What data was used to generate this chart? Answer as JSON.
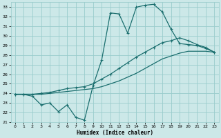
{
  "xlabel": "Humidex (Indice chaleur)",
  "bg_color": "#cce8e8",
  "grid_color": "#99cccc",
  "line_color": "#1a6e6e",
  "xlim_min": -0.5,
  "xlim_max": 23.5,
  "ylim_min": 21,
  "ylim_max": 33.5,
  "xticks": [
    0,
    1,
    2,
    3,
    4,
    5,
    6,
    7,
    8,
    9,
    10,
    11,
    12,
    13,
    14,
    15,
    16,
    17,
    18,
    19,
    20,
    21,
    22,
    23
  ],
  "yticks": [
    21,
    22,
    23,
    24,
    25,
    26,
    27,
    28,
    29,
    30,
    31,
    32,
    33
  ],
  "line1_x": [
    0,
    1,
    2,
    3,
    4,
    5,
    6,
    7,
    8,
    9,
    10,
    11,
    12,
    13,
    14,
    15,
    16,
    17,
    18,
    19,
    20,
    21,
    22,
    23
  ],
  "line1_y": [
    23.9,
    23.9,
    23.7,
    22.8,
    23.0,
    22.1,
    22.8,
    21.5,
    21.2,
    24.8,
    27.5,
    32.4,
    32.3,
    30.3,
    33.0,
    33.2,
    33.3,
    32.5,
    30.7,
    29.2,
    29.1,
    29.0,
    28.7,
    28.3
  ],
  "line2_x": [
    0,
    1,
    2,
    3,
    4,
    5,
    6,
    7,
    8,
    9,
    10,
    11,
    12,
    13,
    14,
    15,
    16,
    17,
    18,
    19,
    20,
    21,
    22,
    23
  ],
  "line2_y": [
    23.9,
    23.9,
    23.9,
    24.0,
    24.1,
    24.3,
    24.5,
    24.6,
    24.7,
    25.0,
    25.5,
    26.0,
    26.6,
    27.2,
    27.8,
    28.3,
    28.8,
    29.3,
    29.5,
    29.8,
    29.5,
    29.1,
    28.8,
    28.3
  ],
  "line3_x": [
    0,
    1,
    2,
    3,
    4,
    5,
    6,
    7,
    8,
    9,
    10,
    11,
    12,
    13,
    14,
    15,
    16,
    17,
    18,
    19,
    20,
    21,
    22,
    23
  ],
  "line3_y": [
    23.9,
    23.9,
    23.9,
    23.9,
    24.0,
    24.1,
    24.2,
    24.3,
    24.4,
    24.5,
    24.7,
    25.0,
    25.3,
    25.7,
    26.1,
    26.6,
    27.1,
    27.6,
    27.9,
    28.2,
    28.4,
    28.4,
    28.4,
    28.3
  ]
}
